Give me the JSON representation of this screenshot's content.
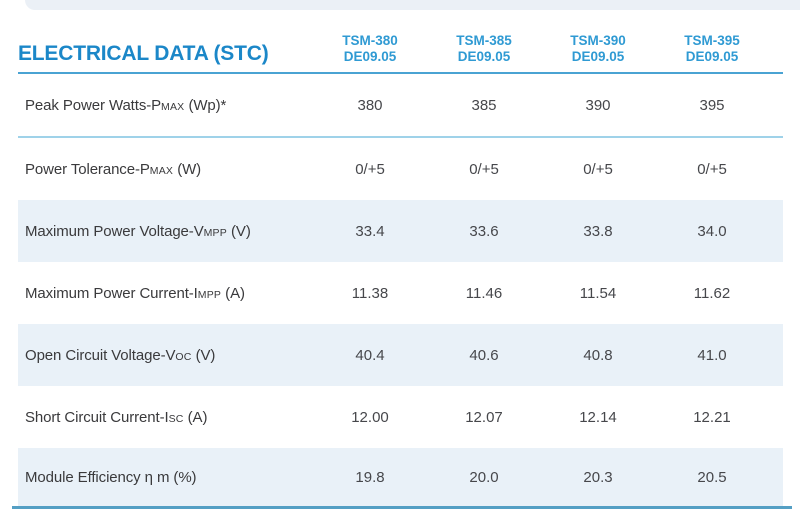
{
  "header": {
    "title": "ELECTRICAL DATA (STC)",
    "columns": [
      {
        "model": "TSM-380",
        "code": "DE09.05"
      },
      {
        "model": "TSM-385",
        "code": "DE09.05"
      },
      {
        "model": "TSM-390",
        "code": "DE09.05"
      },
      {
        "model": "TSM-395",
        "code": "DE09.05"
      }
    ]
  },
  "rows": [
    {
      "label_pre": "Peak Power Watts-P",
      "label_small": "MAX",
      "label_post": " (Wp)*",
      "values": [
        "380",
        "385",
        "390",
        "395"
      ]
    },
    {
      "label_pre": "Power Tolerance-P",
      "label_small": "MAX",
      "label_post": " (W)",
      "values": [
        "0/+5",
        "0/+5",
        "0/+5",
        "0/+5"
      ]
    },
    {
      "label_pre": "Maximum Power Voltage-V",
      "label_small": "MPP",
      "label_post": " (V)",
      "values": [
        "33.4",
        "33.6",
        "33.8",
        "34.0"
      ]
    },
    {
      "label_pre": "Maximum Power Current-I",
      "label_small": "MPP",
      "label_post": " (A)",
      "values": [
        "11.38",
        "11.46",
        "11.54",
        "11.62"
      ]
    },
    {
      "label_pre": "Open Circuit Voltage-V",
      "label_small": "OC",
      "label_post": " (V)",
      "values": [
        "40.4",
        "40.6",
        "40.8",
        "41.0"
      ]
    },
    {
      "label_pre": "Short Circuit Current-I",
      "label_small": "SC",
      "label_post": " (A)",
      "values": [
        "12.00",
        "12.07",
        "12.14",
        "12.21"
      ]
    },
    {
      "label_pre": "Module Efficiency η m (%)",
      "label_small": "",
      "label_post": "",
      "values": [
        "19.8",
        "20.0",
        "20.3",
        "20.5"
      ]
    }
  ],
  "colors": {
    "title_blue": "#1b87c8",
    "header_blue": "#2f9ad3",
    "header_rule": "#4aa3d3",
    "row_rule_light": "#9fd2e9",
    "bottom_rule": "#549fc4",
    "row_shade": "#e9f1f8",
    "top_band": "#ebf0f6",
    "label_text": "#3a3a3c",
    "value_text": "#46474b"
  }
}
